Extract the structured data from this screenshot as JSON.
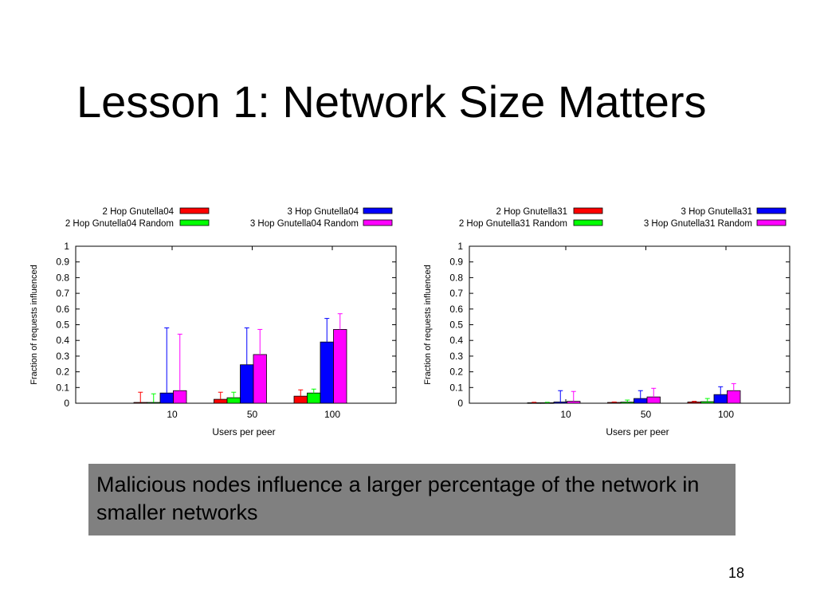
{
  "slide": {
    "title": "Lesson 1: Network Size Matters",
    "callout": "Malicious nodes influence a larger percentage of the network in smaller networks",
    "page_number": "18",
    "callout_color": "#808080"
  },
  "chart_data": [
    {
      "type": "bar",
      "title": "",
      "xlabel": "Users per peer",
      "ylabel": "Fraction of requests influenced",
      "categories": [
        "10",
        "50",
        "100"
      ],
      "ylim": [
        0,
        1
      ],
      "yticks": [
        "0",
        "0.1",
        "0.2",
        "0.3",
        "0.4",
        "0.5",
        "0.6",
        "0.7",
        "0.8",
        "0.9",
        "1"
      ],
      "grid": false,
      "legend_position": "top",
      "series": [
        {
          "name": "2 Hop Gnutella04",
          "color": "#ff0000",
          "values": [
            0.005,
            0.025,
            0.045
          ],
          "error_upper": [
            0.07,
            0.07,
            0.085
          ]
        },
        {
          "name": "2 Hop Gnutella04 Random",
          "color": "#00ff00",
          "values": [
            0.005,
            0.035,
            0.065
          ],
          "error_upper": [
            0.06,
            0.07,
            0.09
          ]
        },
        {
          "name": "3 Hop Gnutella04",
          "color": "#0000ff",
          "values": [
            0.065,
            0.245,
            0.39
          ],
          "error_upper": [
            0.48,
            0.48,
            0.54
          ]
        },
        {
          "name": "3 Hop Gnutella04 Random",
          "color": "#ff00ff",
          "values": [
            0.08,
            0.31,
            0.47
          ],
          "error_upper": [
            0.44,
            0.47,
            0.57
          ]
        }
      ]
    },
    {
      "type": "bar",
      "title": "",
      "xlabel": "Users per peer",
      "ylabel": "Fraction of requests influenced",
      "categories": [
        "10",
        "50",
        "100"
      ],
      "ylim": [
        0,
        1
      ],
      "yticks": [
        "0",
        "0.1",
        "0.2",
        "0.3",
        "0.4",
        "0.5",
        "0.6",
        "0.7",
        "0.8",
        "0.9",
        "1"
      ],
      "grid": false,
      "legend_position": "top",
      "series": [
        {
          "name": "2 Hop Gnutella31",
          "color": "#ff0000",
          "values": [
            0.003,
            0.005,
            0.008
          ],
          "error_upper": [
            0.006,
            0.008,
            0.012
          ]
        },
        {
          "name": "2 Hop Gnutella31 Random",
          "color": "#00ff00",
          "values": [
            0.003,
            0.007,
            0.01
          ],
          "error_upper": [
            0.006,
            0.02,
            0.03
          ]
        },
        {
          "name": "3 Hop Gnutella31",
          "color": "#0000ff",
          "values": [
            0.008,
            0.03,
            0.055
          ],
          "error_upper": [
            0.08,
            0.08,
            0.105
          ]
        },
        {
          "name": "3 Hop Gnutella31 Random",
          "color": "#ff00ff",
          "values": [
            0.012,
            0.04,
            0.08
          ],
          "error_upper": [
            0.075,
            0.095,
            0.125
          ]
        }
      ]
    }
  ]
}
